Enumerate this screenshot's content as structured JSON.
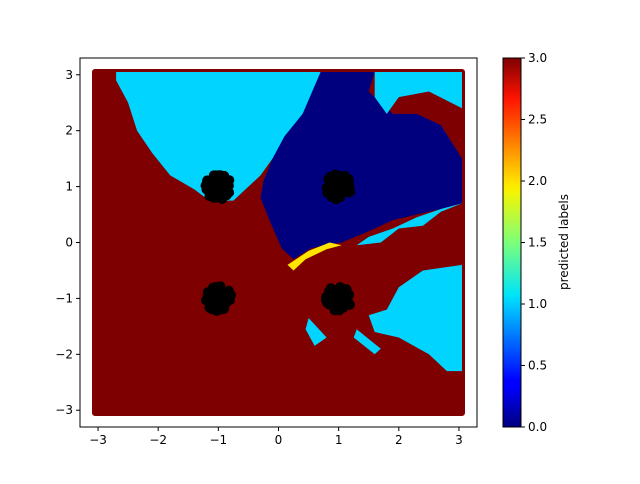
{
  "chart_data": {
    "type": "scatter",
    "title": "",
    "xlabel": "",
    "ylabel": "",
    "xlim": [
      -3.3,
      3.3
    ],
    "ylim": [
      -3.3,
      3.3
    ],
    "x_ticks": [
      -3,
      -2,
      -1,
      0,
      1,
      2,
      3
    ],
    "x_tick_labels": [
      "−3",
      "−2",
      "−1",
      "0",
      "1",
      "2",
      "3"
    ],
    "y_ticks": [
      -3,
      -2,
      -1,
      0,
      1,
      2,
      3
    ],
    "y_tick_labels": [
      "−3",
      "−2",
      "−1",
      "0",
      "1",
      "2",
      "3"
    ],
    "grid": false,
    "colormap": "jet",
    "colorbar": {
      "label": "predicted labels",
      "range": [
        0.0,
        3.0
      ],
      "ticks": [
        0.0,
        0.5,
        1.0,
        1.5,
        2.0,
        2.5,
        3.0
      ],
      "tick_labels": [
        "0.0",
        "0.5",
        "1.0",
        "1.5",
        "2.0",
        "2.5",
        "3.0"
      ]
    },
    "label_colors": {
      "0": "#00007f",
      "1": "#00d4ff",
      "2": "#ffe500",
      "3": "#7f0000"
    },
    "decision_regions": [
      {
        "label": 3,
        "polygon": [
          [
            -3.05,
            3.05
          ],
          [
            3.05,
            3.05
          ],
          [
            3.05,
            -3.05
          ],
          [
            -3.05,
            -3.05
          ]
        ]
      },
      {
        "label": 1,
        "polygon": [
          [
            -2.7,
            3.05
          ],
          [
            0.7,
            3.05
          ],
          [
            0.7,
            2.0
          ],
          [
            -0.1,
            1.5
          ],
          [
            -0.3,
            1.2
          ],
          [
            -0.75,
            0.75
          ],
          [
            -1.15,
            0.75
          ],
          [
            -1.4,
            0.95
          ],
          [
            -1.8,
            1.2
          ],
          [
            -2.1,
            1.6
          ],
          [
            -2.35,
            2.0
          ],
          [
            -2.5,
            2.5
          ],
          [
            -2.7,
            2.9
          ]
        ]
      },
      {
        "label": 0,
        "polygon": [
          [
            0.7,
            3.05
          ],
          [
            1.6,
            3.05
          ],
          [
            1.5,
            2.7
          ],
          [
            1.9,
            2.3
          ],
          [
            2.3,
            2.3
          ],
          [
            2.7,
            2.1
          ],
          [
            3.05,
            1.5
          ],
          [
            3.05,
            0.7
          ],
          [
            2.7,
            0.6
          ],
          [
            2.3,
            0.5
          ],
          [
            1.9,
            0.4
          ],
          [
            1.5,
            0.2
          ],
          [
            1.05,
            0.0
          ],
          [
            0.55,
            -0.1
          ],
          [
            0.25,
            -0.3
          ],
          [
            0.05,
            -0.1
          ],
          [
            -0.15,
            0.4
          ],
          [
            -0.3,
            0.8
          ],
          [
            -0.25,
            1.1
          ],
          [
            -0.1,
            1.5
          ],
          [
            0.1,
            1.9
          ],
          [
            0.4,
            2.3
          ]
        ]
      },
      {
        "label": 1,
        "polygon": [
          [
            1.6,
            3.05
          ],
          [
            3.05,
            3.05
          ],
          [
            3.05,
            2.4
          ],
          [
            2.5,
            2.7
          ],
          [
            2.0,
            2.6
          ],
          [
            1.8,
            2.3
          ],
          [
            1.6,
            2.6
          ]
        ]
      },
      {
        "label": 1,
        "polygon": [
          [
            3.05,
            0.7
          ],
          [
            2.7,
            0.55
          ],
          [
            2.4,
            0.3
          ],
          [
            2.0,
            0.25
          ],
          [
            1.7,
            0.0
          ],
          [
            1.3,
            -0.05
          ],
          [
            1.5,
            0.1
          ],
          [
            1.9,
            0.25
          ],
          [
            2.3,
            0.45
          ],
          [
            2.7,
            0.6
          ]
        ]
      },
      {
        "label": 1,
        "polygon": [
          [
            3.05,
            -0.4
          ],
          [
            2.4,
            -0.5
          ],
          [
            2.0,
            -0.8
          ],
          [
            1.8,
            -1.2
          ],
          [
            1.5,
            -1.3
          ],
          [
            1.6,
            -1.6
          ],
          [
            2.0,
            -1.7
          ],
          [
            2.5,
            -2.0
          ],
          [
            2.8,
            -2.3
          ],
          [
            3.05,
            -2.3
          ]
        ]
      },
      {
        "label": 1,
        "polygon": [
          [
            0.5,
            -1.35
          ],
          [
            0.8,
            -1.7
          ],
          [
            0.6,
            -1.85
          ],
          [
            0.45,
            -1.55
          ]
        ]
      },
      {
        "label": 1,
        "polygon": [
          [
            1.3,
            -1.55
          ],
          [
            1.7,
            -1.9
          ],
          [
            1.6,
            -2.0
          ],
          [
            1.25,
            -1.7
          ]
        ]
      },
      {
        "label": 2,
        "polygon": [
          [
            0.15,
            -0.4
          ],
          [
            0.5,
            -0.15
          ],
          [
            0.85,
            0.0
          ],
          [
            1.05,
            -0.05
          ],
          [
            0.8,
            -0.12
          ],
          [
            0.45,
            -0.3
          ],
          [
            0.25,
            -0.5
          ]
        ]
      }
    ],
    "clusters": [
      {
        "center": [
          -1.0,
          1.0
        ],
        "radius": 0.22,
        "count": 60,
        "color": "#000000"
      },
      {
        "center": [
          1.0,
          1.0
        ],
        "radius": 0.22,
        "count": 60,
        "color": "#000000"
      },
      {
        "center": [
          -1.0,
          -1.0
        ],
        "radius": 0.22,
        "count": 60,
        "color": "#000000"
      },
      {
        "center": [
          1.0,
          -1.0
        ],
        "radius": 0.22,
        "count": 60,
        "color": "#000000"
      }
    ]
  }
}
